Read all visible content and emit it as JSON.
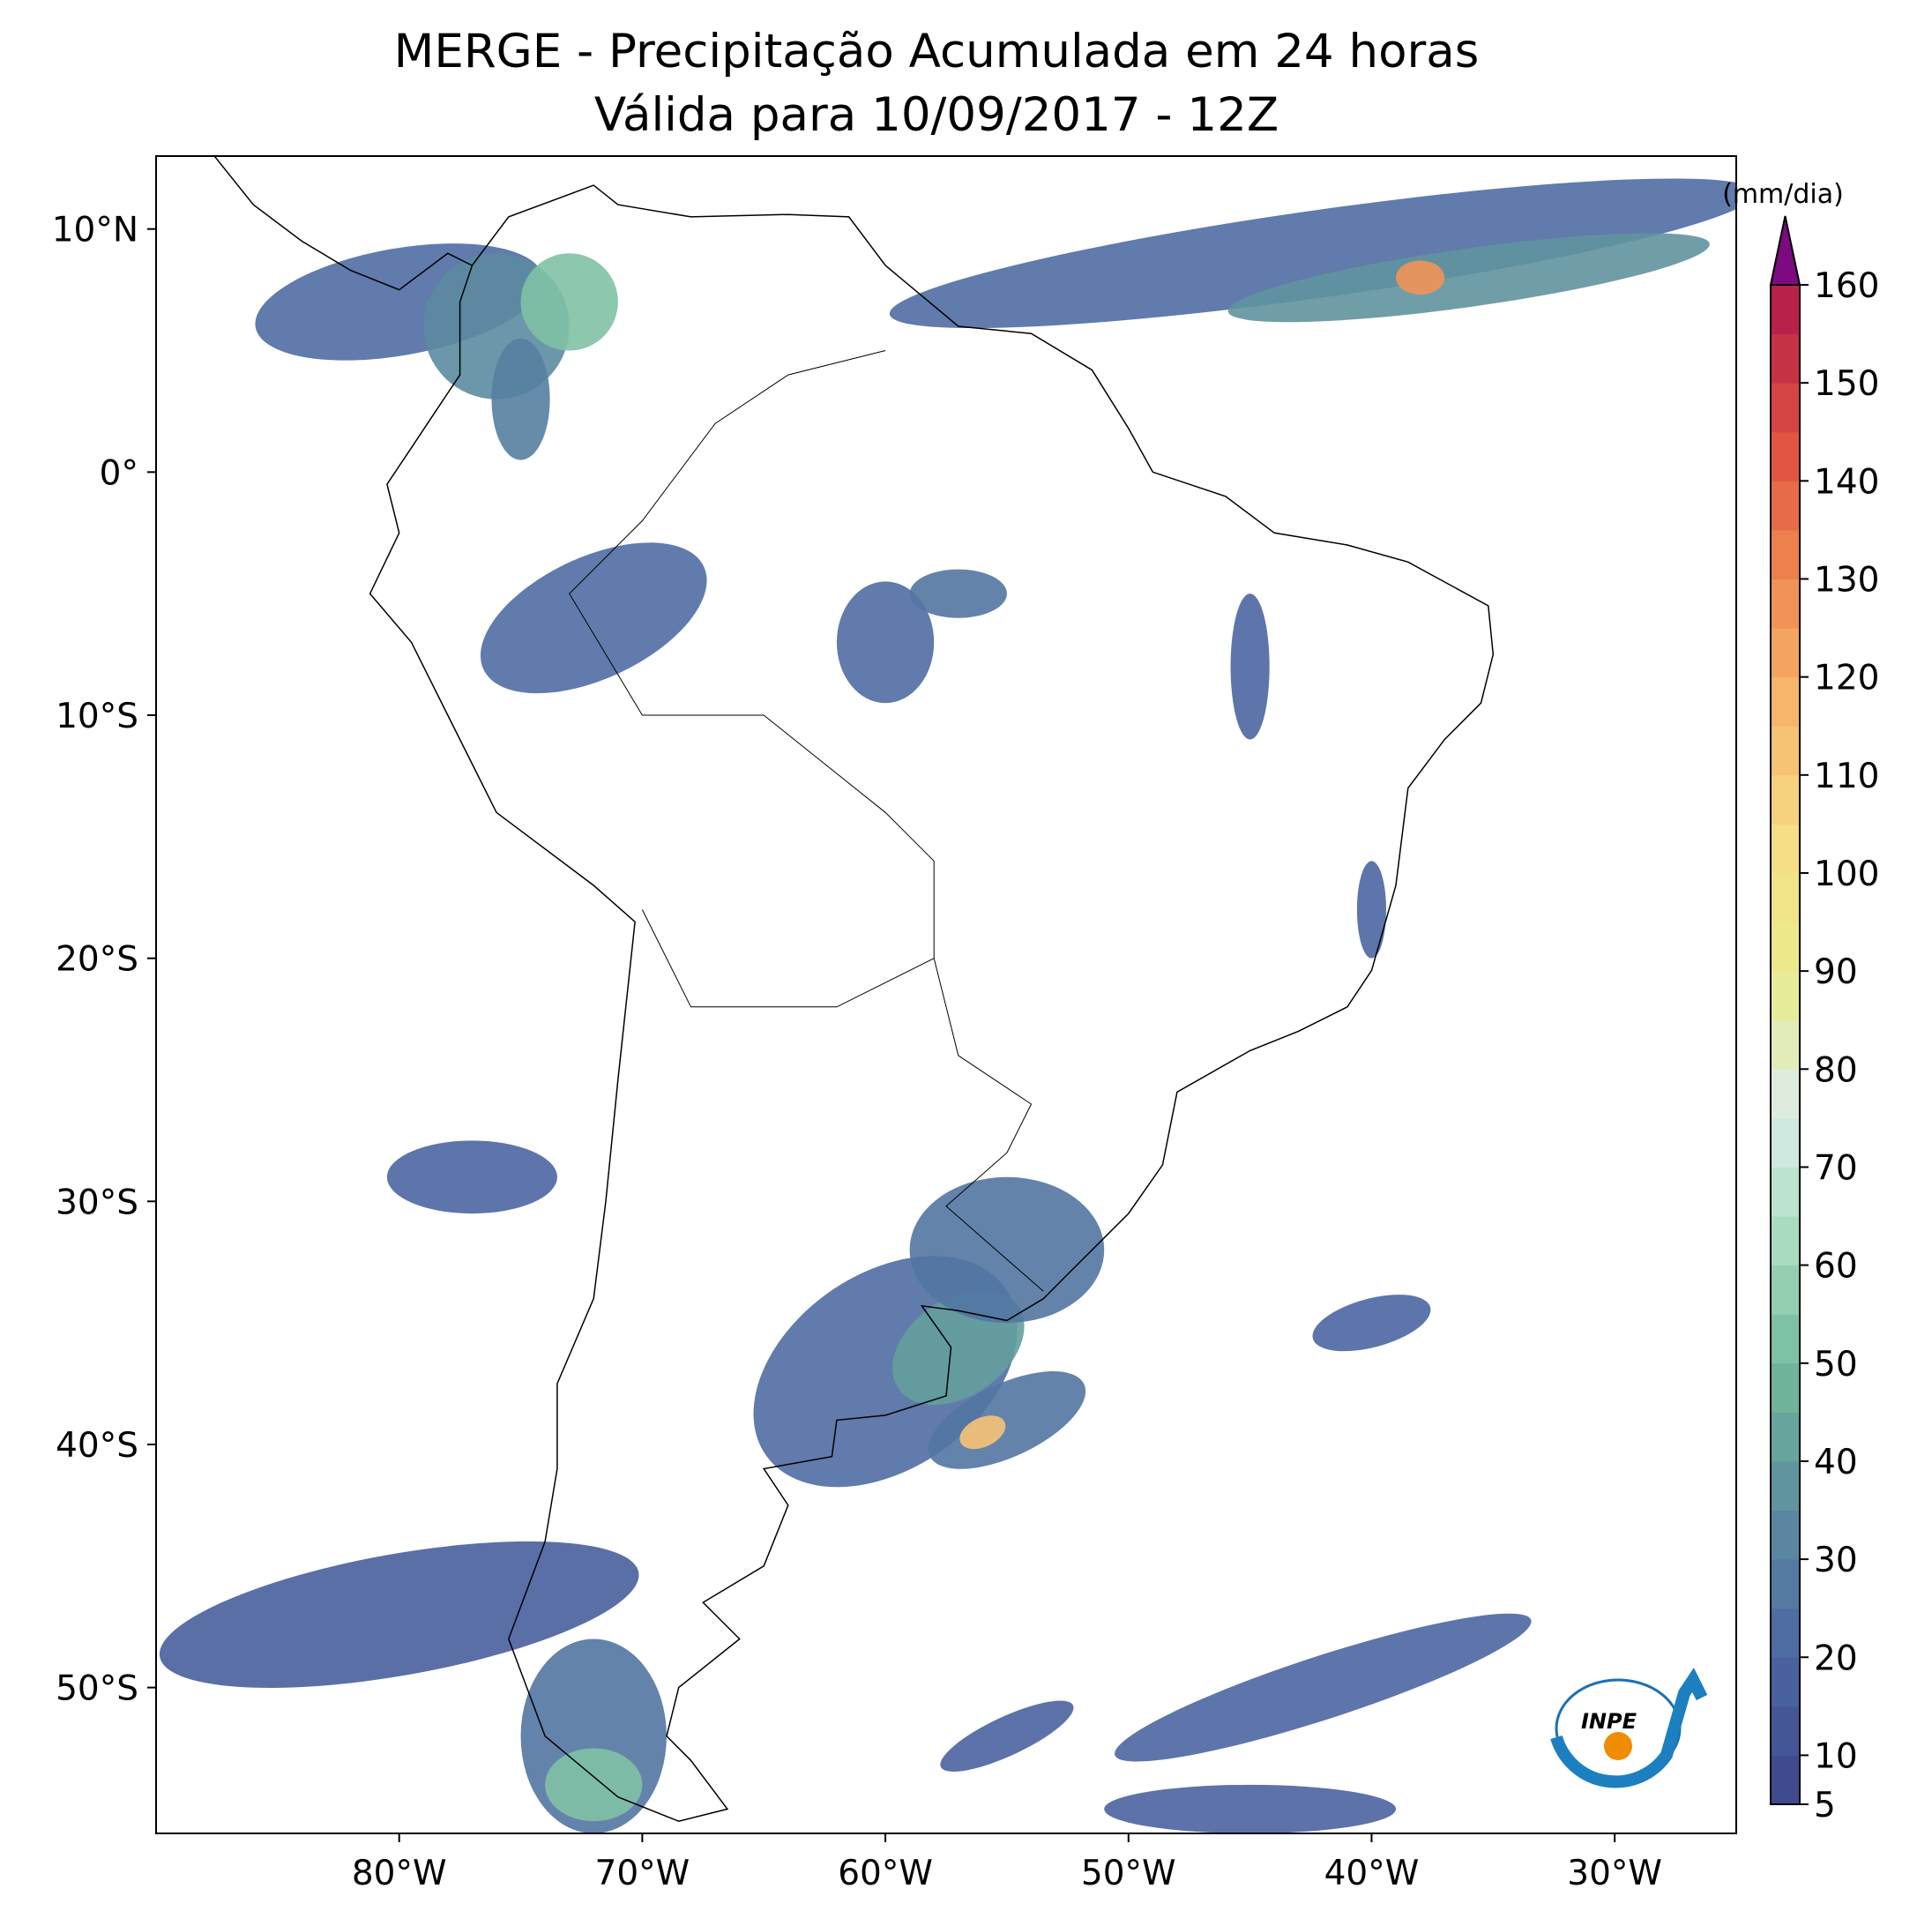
{
  "map": {
    "type": "map",
    "title": "MERGE - Precipitação Acumulada em 24 horas",
    "subtitle": "Válida para 10/09/2017 - 12Z",
    "xlim": [
      -90,
      -25
    ],
    "ylim": [
      -56,
      13
    ],
    "xticks": [
      {
        "value": -80,
        "label": "80°W"
      },
      {
        "value": -70,
        "label": "70°W"
      },
      {
        "value": -60,
        "label": "60°W"
      },
      {
        "value": -50,
        "label": "50°W"
      },
      {
        "value": -40,
        "label": "40°W"
      },
      {
        "value": -30,
        "label": "30°W"
      }
    ],
    "yticks": [
      {
        "value": 10,
        "label": "10°N"
      },
      {
        "value": 0,
        "label": "0°"
      },
      {
        "value": -10,
        "label": "10°S"
      },
      {
        "value": -20,
        "label": "20°S"
      },
      {
        "value": -30,
        "label": "30°S"
      },
      {
        "value": -40,
        "label": "40°S"
      },
      {
        "value": -50,
        "label": "50°S"
      }
    ],
    "colorbar": {
      "label": "(mm/dia)",
      "range": [
        5,
        160
      ],
      "ticks": [
        5,
        10,
        20,
        30,
        40,
        50,
        60,
        70,
        80,
        90,
        100,
        110,
        120,
        130,
        140,
        150,
        160
      ],
      "colors": [
        "#3f4a8f",
        "#4d6aa3",
        "#5c8ca0",
        "#6fb69a",
        "#a6dbbe",
        "#dcecea",
        "#e8ec8c",
        "#f5dd85",
        "#f7b86e",
        "#f08a50",
        "#de5040",
        "#b8224a"
      ],
      "extend_color": "#7d0a7e"
    },
    "logo": "INPE"
  }
}
